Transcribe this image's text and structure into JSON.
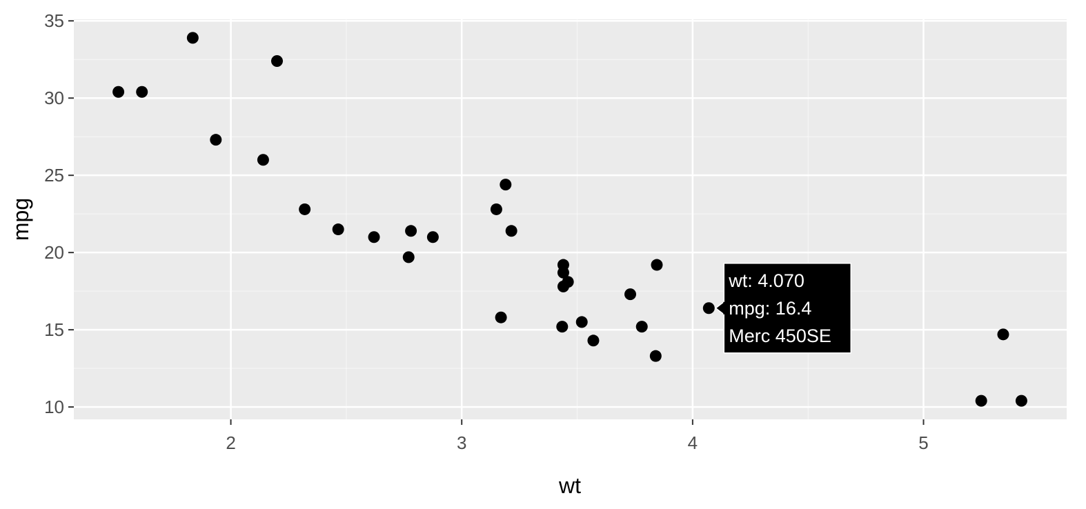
{
  "chart_data": {
    "type": "scatter",
    "title": "",
    "xlabel": "wt",
    "ylabel": "mpg",
    "xlim": [
      1.32,
      5.62
    ],
    "ylim": [
      9.2,
      35.1
    ],
    "xticks": [
      2,
      3,
      4,
      5
    ],
    "yticks": [
      10,
      15,
      20,
      25,
      30,
      35
    ],
    "grid": true,
    "colors": {
      "panel": "#ebebeb",
      "grid": "#ffffff",
      "point": "#000000",
      "tick": "#333333"
    },
    "points": [
      {
        "x": 2.62,
        "y": 21.0
      },
      {
        "x": 2.875,
        "y": 21.0
      },
      {
        "x": 2.32,
        "y": 22.8
      },
      {
        "x": 3.215,
        "y": 21.4
      },
      {
        "x": 3.44,
        "y": 18.7
      },
      {
        "x": 3.46,
        "y": 18.1
      },
      {
        "x": 3.57,
        "y": 14.3
      },
      {
        "x": 3.19,
        "y": 24.4
      },
      {
        "x": 3.15,
        "y": 22.8
      },
      {
        "x": 3.44,
        "y": 19.2
      },
      {
        "x": 3.44,
        "y": 17.8
      },
      {
        "x": 4.07,
        "y": 16.4
      },
      {
        "x": 3.73,
        "y": 17.3
      },
      {
        "x": 3.78,
        "y": 15.2
      },
      {
        "x": 5.25,
        "y": 10.4
      },
      {
        "x": 5.424,
        "y": 10.4
      },
      {
        "x": 5.345,
        "y": 14.7
      },
      {
        "x": 2.2,
        "y": 32.4
      },
      {
        "x": 1.615,
        "y": 30.4
      },
      {
        "x": 1.835,
        "y": 33.9
      },
      {
        "x": 2.465,
        "y": 21.5
      },
      {
        "x": 3.52,
        "y": 15.5
      },
      {
        "x": 3.435,
        "y": 15.2
      },
      {
        "x": 3.84,
        "y": 13.3
      },
      {
        "x": 3.845,
        "y": 19.2
      },
      {
        "x": 1.935,
        "y": 27.3
      },
      {
        "x": 2.14,
        "y": 26.0
      },
      {
        "x": 1.513,
        "y": 30.4
      },
      {
        "x": 3.17,
        "y": 15.8
      },
      {
        "x": 2.77,
        "y": 19.7
      },
      {
        "x": 2.78,
        "y": 21.4
      }
    ],
    "tooltip": {
      "x": 4.07,
      "y": 16.4,
      "lines": [
        "wt: 4.070",
        "mpg: 16.4",
        "Merc 450SE"
      ]
    }
  }
}
